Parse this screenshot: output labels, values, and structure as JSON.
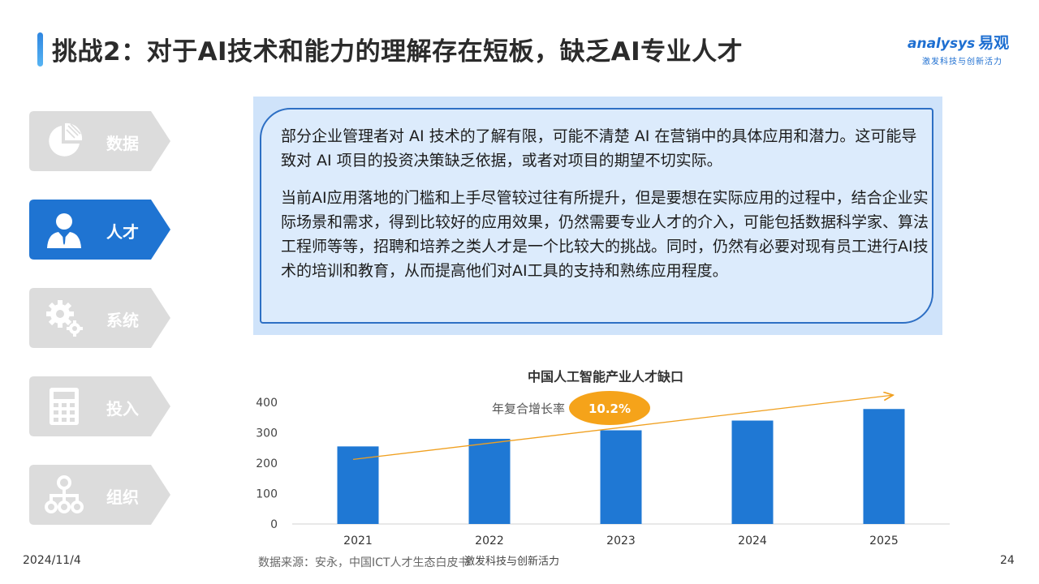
{
  "header": {
    "title": "挑战2：对于AI技术和能力的理解存在短板，缺乏AI专业人才",
    "logo_text": "nalysys",
    "logo_letter": "a",
    "logo_cn": "易观",
    "logo_sub": "激发科技与创新活力"
  },
  "sidebar": {
    "items": [
      {
        "label": "数据",
        "icon": "pie-chart-icon",
        "active": false
      },
      {
        "label": "人才",
        "icon": "person-icon",
        "active": true
      },
      {
        "label": "系统",
        "icon": "gears-icon",
        "active": false
      },
      {
        "label": "投入",
        "icon": "calculator-icon",
        "active": false
      },
      {
        "label": "组织",
        "icon": "org-chart-icon",
        "active": false
      }
    ]
  },
  "content": {
    "paragraph1": "部分企业管理者对 AI 技术的了解有限，可能不清楚 AI 在营销中的具体应用和潜力。这可能导致对 AI 项目的投资决策缺乏依据，或者对项目的期望不切实际。",
    "paragraph2": "当前AI应用落地的门槛和上手尽管较过往有所提升，但是要想在实际应用的过程中，结合企业实际场景和需求，得到比较好的应用效果，仍然需要专业人才的介入，可能包括数据科学家、算法工程师等等，招聘和培养之类人才是一个比较大的挑战。同时，仍然有必要对现有员工进行AI技术的培训和教育，从而提高他们对AI工具的支持和熟练应用程度。"
  },
  "chart_data": {
    "type": "bar",
    "title": "中国人工智能产业人才缺口",
    "categories": [
      "2021",
      "2022",
      "2023",
      "2024",
      "2025"
    ],
    "values": [
      255,
      280,
      308,
      340,
      378
    ],
    "ylim": [
      0,
      400
    ],
    "yticks": [
      0,
      100,
      200,
      300,
      400
    ],
    "cagr_label": "年复合增长率",
    "cagr_value": "10.2%",
    "bar_color": "#1f78d4",
    "trend_color": "#f0a020",
    "badge_color": "#f5a31a"
  },
  "footer": {
    "date": "2024/11/4",
    "source": "数据来源：安永，中国ICT人才生态白皮书",
    "tagline": "激发科技与创新活力",
    "page": "24"
  },
  "colors": {
    "accent": "#1e6fd1",
    "tab_active": "#1f74d2",
    "tab_inactive": "#dcdcdc"
  }
}
